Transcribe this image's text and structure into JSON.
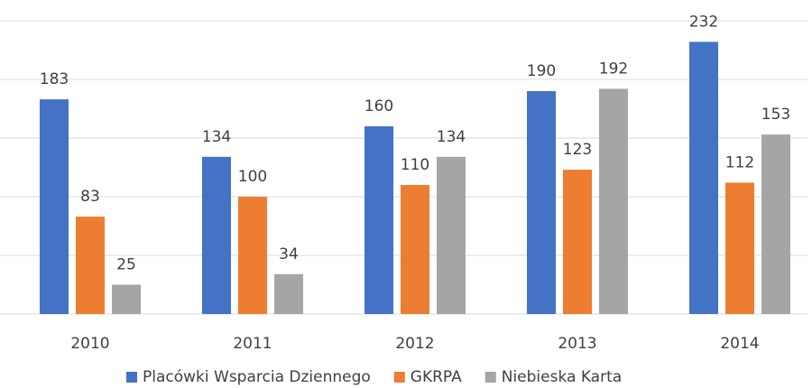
{
  "chart_data": {
    "type": "bar",
    "categories": [
      "2010",
      "2011",
      "2012",
      "2013",
      "2014"
    ],
    "series": [
      {
        "name": "Placówki Wsparcia Dziennego",
        "color": "#4472c4",
        "values": [
          183,
          134,
          160,
          190,
          232
        ]
      },
      {
        "name": "GKRPA",
        "color": "#ed7d31",
        "values": [
          83,
          100,
          110,
          123,
          112
        ]
      },
      {
        "name": "Niebieska Karta",
        "color": "#a5a5a5",
        "values": [
          25,
          34,
          134,
          192,
          153
        ]
      }
    ],
    "ylim": [
      0,
      250
    ],
    "yticks": [
      0,
      50,
      100,
      150,
      200,
      250
    ],
    "grid": true,
    "legend": "bottom"
  }
}
